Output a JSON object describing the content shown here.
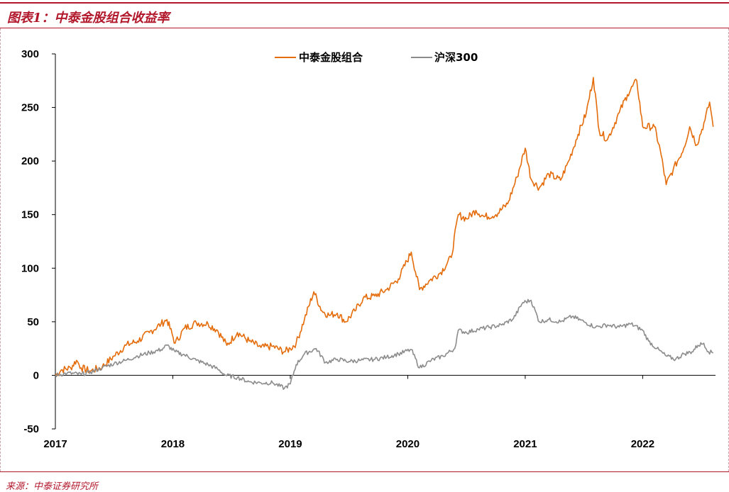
{
  "title": "图表1：中泰金股组合收益率",
  "source": "来源：中泰证券研究所",
  "colors": {
    "accent": "#b2182b",
    "portfolio": "#e46c0a",
    "benchmark": "#8c8c8c"
  },
  "chart_data": {
    "type": "line",
    "title": "",
    "xlabel": "",
    "ylabel": "",
    "ylim": [
      -50,
      300
    ],
    "yticks": [
      -50,
      0,
      50,
      100,
      150,
      200,
      250,
      300
    ],
    "xlim": [
      2017.0,
      2022.62
    ],
    "xticks": [
      2017,
      2018,
      2019,
      2020,
      2021,
      2022
    ],
    "xtick_labels": [
      "2017",
      "2018",
      "2019",
      "2020",
      "2021",
      "2022"
    ],
    "grid": false,
    "legend": "top-center",
    "series": [
      {
        "name": "中泰金股组合",
        "color": "#e46c0a",
        "points": [
          [
            2017.0,
            0
          ],
          [
            2017.05,
            5
          ],
          [
            2017.13,
            7
          ],
          [
            2017.18,
            14
          ],
          [
            2017.22,
            7
          ],
          [
            2017.3,
            4
          ],
          [
            2017.4,
            8
          ],
          [
            2017.5,
            18
          ],
          [
            2017.6,
            28
          ],
          [
            2017.7,
            32
          ],
          [
            2017.8,
            40
          ],
          [
            2017.9,
            48
          ],
          [
            2017.95,
            52
          ],
          [
            2018.02,
            30
          ],
          [
            2018.1,
            44
          ],
          [
            2018.2,
            49
          ],
          [
            2018.3,
            48
          ],
          [
            2018.38,
            42
          ],
          [
            2018.46,
            28
          ],
          [
            2018.55,
            40
          ],
          [
            2018.65,
            32
          ],
          [
            2018.75,
            26
          ],
          [
            2018.85,
            27
          ],
          [
            2018.95,
            22
          ],
          [
            2019.0,
            25
          ],
          [
            2019.05,
            30
          ],
          [
            2019.12,
            52
          ],
          [
            2019.2,
            78
          ],
          [
            2019.27,
            60
          ],
          [
            2019.33,
            56
          ],
          [
            2019.4,
            58
          ],
          [
            2019.47,
            50
          ],
          [
            2019.55,
            60
          ],
          [
            2019.62,
            72
          ],
          [
            2019.72,
            74
          ],
          [
            2019.82,
            80
          ],
          [
            2019.92,
            90
          ],
          [
            2020.03,
            115
          ],
          [
            2020.1,
            80
          ],
          [
            2020.18,
            88
          ],
          [
            2020.28,
            96
          ],
          [
            2020.37,
            110
          ],
          [
            2020.43,
            150
          ],
          [
            2020.5,
            146
          ],
          [
            2020.58,
            154
          ],
          [
            2020.65,
            148
          ],
          [
            2020.75,
            150
          ],
          [
            2020.85,
            160
          ],
          [
            2020.93,
            185
          ],
          [
            2021.0,
            212
          ],
          [
            2021.05,
            183
          ],
          [
            2021.12,
            175
          ],
          [
            2021.2,
            188
          ],
          [
            2021.3,
            182
          ],
          [
            2021.37,
            200
          ],
          [
            2021.45,
            225
          ],
          [
            2021.52,
            245
          ],
          [
            2021.58,
            278
          ],
          [
            2021.63,
            228
          ],
          [
            2021.7,
            220
          ],
          [
            2021.8,
            245
          ],
          [
            2021.87,
            262
          ],
          [
            2021.95,
            275
          ],
          [
            2022.0,
            232
          ],
          [
            2022.1,
            232
          ],
          [
            2022.15,
            210
          ],
          [
            2022.2,
            178
          ],
          [
            2022.26,
            192
          ],
          [
            2022.35,
            212
          ],
          [
            2022.4,
            232
          ],
          [
            2022.46,
            215
          ],
          [
            2022.53,
            238
          ],
          [
            2022.57,
            255
          ],
          [
            2022.6,
            232
          ]
        ]
      },
      {
        "name": "沪深300",
        "color": "#8c8c8c",
        "points": [
          [
            2017.0,
            0
          ],
          [
            2017.1,
            2
          ],
          [
            2017.22,
            1
          ],
          [
            2017.3,
            3
          ],
          [
            2017.4,
            7
          ],
          [
            2017.5,
            11
          ],
          [
            2017.6,
            14
          ],
          [
            2017.7,
            18
          ],
          [
            2017.8,
            21
          ],
          [
            2017.9,
            24
          ],
          [
            2017.95,
            28
          ],
          [
            2018.02,
            22
          ],
          [
            2018.1,
            19
          ],
          [
            2018.2,
            14
          ],
          [
            2018.3,
            10
          ],
          [
            2018.38,
            6
          ],
          [
            2018.45,
            0
          ],
          [
            2018.55,
            -2
          ],
          [
            2018.65,
            -6
          ],
          [
            2018.75,
            -7
          ],
          [
            2018.85,
            -7
          ],
          [
            2018.95,
            -12
          ],
          [
            2019.0,
            -8
          ],
          [
            2019.05,
            10
          ],
          [
            2019.12,
            20
          ],
          [
            2019.22,
            25
          ],
          [
            2019.3,
            12
          ],
          [
            2019.4,
            15
          ],
          [
            2019.5,
            13
          ],
          [
            2019.6,
            14
          ],
          [
            2019.72,
            15
          ],
          [
            2019.82,
            17
          ],
          [
            2019.92,
            20
          ],
          [
            2020.03,
            24
          ],
          [
            2020.1,
            7
          ],
          [
            2020.2,
            14
          ],
          [
            2020.3,
            18
          ],
          [
            2020.4,
            25
          ],
          [
            2020.43,
            42
          ],
          [
            2020.5,
            40
          ],
          [
            2020.6,
            43
          ],
          [
            2020.7,
            45
          ],
          [
            2020.8,
            47
          ],
          [
            2020.9,
            53
          ],
          [
            2020.98,
            68
          ],
          [
            2021.05,
            70
          ],
          [
            2021.12,
            50
          ],
          [
            2021.2,
            52
          ],
          [
            2021.3,
            50
          ],
          [
            2021.4,
            55
          ],
          [
            2021.5,
            50
          ],
          [
            2021.6,
            45
          ],
          [
            2021.7,
            47
          ],
          [
            2021.8,
            45
          ],
          [
            2021.9,
            48
          ],
          [
            2022.0,
            42
          ],
          [
            2022.05,
            32
          ],
          [
            2022.12,
            25
          ],
          [
            2022.2,
            18
          ],
          [
            2022.28,
            15
          ],
          [
            2022.35,
            20
          ],
          [
            2022.42,
            22
          ],
          [
            2022.47,
            28
          ],
          [
            2022.52,
            30
          ],
          [
            2022.56,
            22
          ],
          [
            2022.6,
            21
          ]
        ]
      }
    ]
  }
}
